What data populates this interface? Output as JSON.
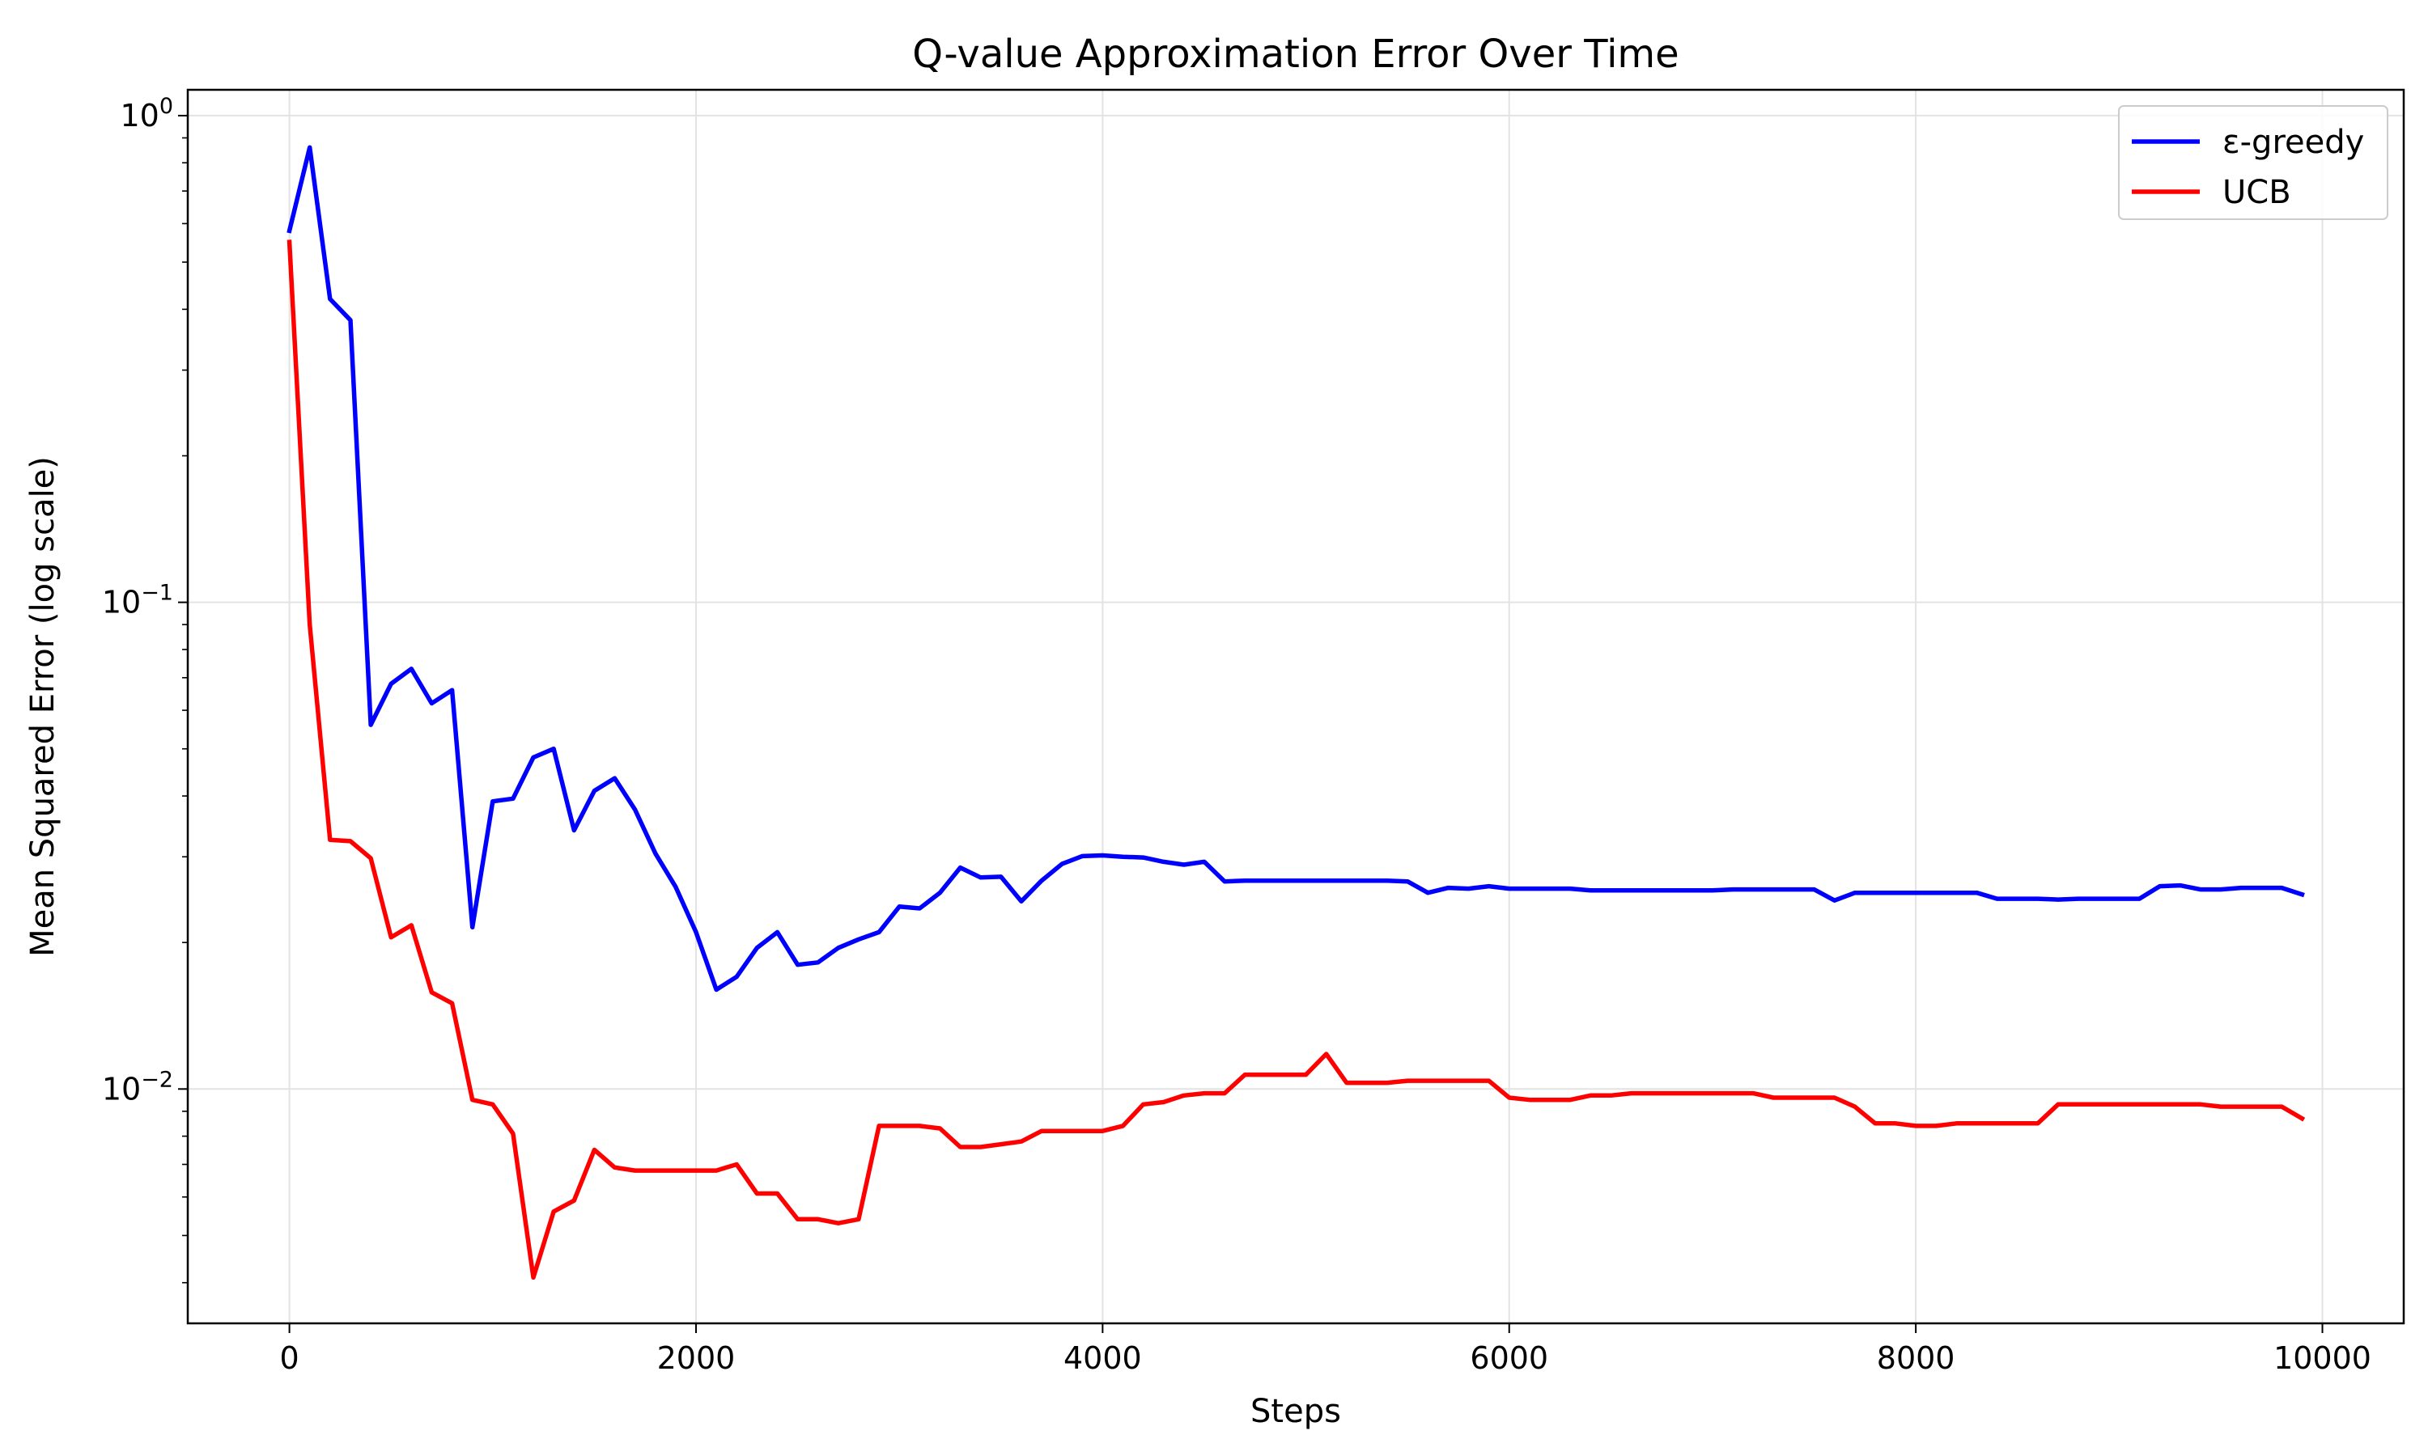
{
  "chart_data": {
    "type": "line",
    "title": "Q-value Approximation Error Over Time",
    "xlabel": "Steps",
    "ylabel": "Mean Squared Error (log scale)",
    "yscale": "log",
    "xlim": [
      -500,
      10400
    ],
    "ylim": [
      0.0033,
      1.13
    ],
    "x_ticks": [
      0,
      2000,
      4000,
      6000,
      8000,
      10000
    ],
    "x_tick_labels": [
      "0",
      "2000",
      "4000",
      "6000",
      "8000",
      "10000"
    ],
    "y_ticks": [
      1,
      0.1,
      0.01
    ],
    "y_tick_labels": [
      {
        "base": "10",
        "exp": "0"
      },
      {
        "base": "10",
        "exp": "−1"
      },
      {
        "base": "10",
        "exp": "−2"
      }
    ],
    "grid": true,
    "legend_position": "top-right",
    "x": [
      0,
      100,
      200,
      300,
      400,
      500,
      600,
      700,
      800,
      900,
      1000,
      1100,
      1200,
      1300,
      1400,
      1500,
      1600,
      1700,
      1800,
      1900,
      2000,
      2100,
      2200,
      2300,
      2400,
      2500,
      2600,
      2700,
      2800,
      2900,
      3000,
      3100,
      3200,
      3300,
      3400,
      3500,
      3600,
      3700,
      3800,
      3900,
      4000,
      4100,
      4200,
      4300,
      4400,
      4500,
      4600,
      4700,
      4800,
      4900,
      5000,
      5100,
      5200,
      5300,
      5400,
      5500,
      5600,
      5700,
      5800,
      5900,
      6000,
      6100,
      6200,
      6300,
      6400,
      6500,
      6600,
      6700,
      6800,
      6900,
      7000,
      7100,
      7200,
      7300,
      7400,
      7500,
      7600,
      7700,
      7800,
      7900,
      8000,
      8100,
      8200,
      8300,
      8400,
      8500,
      8600,
      8700,
      8800,
      8900,
      9000,
      9100,
      9200,
      9300,
      9400,
      9500,
      9600,
      9700,
      9800,
      9900
    ],
    "series": [
      {
        "name": "ε-greedy",
        "color": "#0000ff",
        "values": [
          0.58,
          0.86,
          0.42,
          0.38,
          0.056,
          0.068,
          0.073,
          0.062,
          0.066,
          0.0215,
          0.039,
          0.0395,
          0.048,
          0.05,
          0.034,
          0.041,
          0.0435,
          0.0375,
          0.0305,
          0.026,
          0.021,
          0.016,
          0.017,
          0.0195,
          0.021,
          0.018,
          0.0182,
          0.0195,
          0.0203,
          0.021,
          0.0237,
          0.0235,
          0.0253,
          0.0285,
          0.0272,
          0.0273,
          0.0243,
          0.0268,
          0.029,
          0.0301,
          0.0302,
          0.03,
          0.0299,
          0.0293,
          0.0289,
          0.0293,
          0.0267,
          0.0268,
          0.0268,
          0.0268,
          0.0268,
          0.0268,
          0.0268,
          0.0268,
          0.0268,
          0.0267,
          0.0253,
          0.0259,
          0.0258,
          0.0261,
          0.0258,
          0.0258,
          0.0258,
          0.0258,
          0.0256,
          0.0256,
          0.0256,
          0.0256,
          0.0256,
          0.0256,
          0.0256,
          0.0257,
          0.0257,
          0.0257,
          0.0257,
          0.0257,
          0.0244,
          0.0253,
          0.0253,
          0.0253,
          0.0253,
          0.0253,
          0.0253,
          0.0253,
          0.0246,
          0.0246,
          0.0246,
          0.0245,
          0.0246,
          0.0246,
          0.0246,
          0.0246,
          0.0261,
          0.0262,
          0.0257,
          0.0257,
          0.0259,
          0.0259,
          0.0259,
          0.0251
        ]
      },
      {
        "name": "UCB",
        "color": "#ff0000",
        "values": [
          0.55,
          0.09,
          0.0325,
          0.0323,
          0.0298,
          0.0205,
          0.0217,
          0.0158,
          0.015,
          0.0095,
          0.0093,
          0.0081,
          0.0041,
          0.0056,
          0.0059,
          0.0075,
          0.0069,
          0.0068,
          0.0068,
          0.0068,
          0.0068,
          0.0068,
          0.007,
          0.0061,
          0.0061,
          0.0054,
          0.0054,
          0.0053,
          0.0054,
          0.0084,
          0.0084,
          0.0084,
          0.0083,
          0.0076,
          0.0076,
          0.0077,
          0.0078,
          0.0082,
          0.0082,
          0.0082,
          0.0082,
          0.0084,
          0.0093,
          0.0094,
          0.0097,
          0.0098,
          0.0098,
          0.0107,
          0.0107,
          0.0107,
          0.0107,
          0.0118,
          0.0103,
          0.0103,
          0.0103,
          0.0104,
          0.0104,
          0.0104,
          0.0104,
          0.0104,
          0.0096,
          0.0095,
          0.0095,
          0.0095,
          0.0097,
          0.0097,
          0.0098,
          0.0098,
          0.0098,
          0.0098,
          0.0098,
          0.0098,
          0.0098,
          0.0096,
          0.0096,
          0.0096,
          0.0096,
          0.0092,
          0.0085,
          0.0085,
          0.0084,
          0.0084,
          0.0085,
          0.0085,
          0.0085,
          0.0085,
          0.0085,
          0.0093,
          0.0093,
          0.0093,
          0.0093,
          0.0093,
          0.0093,
          0.0093,
          0.0093,
          0.0092,
          0.0092,
          0.0092,
          0.0092,
          0.0087
        ]
      }
    ]
  }
}
